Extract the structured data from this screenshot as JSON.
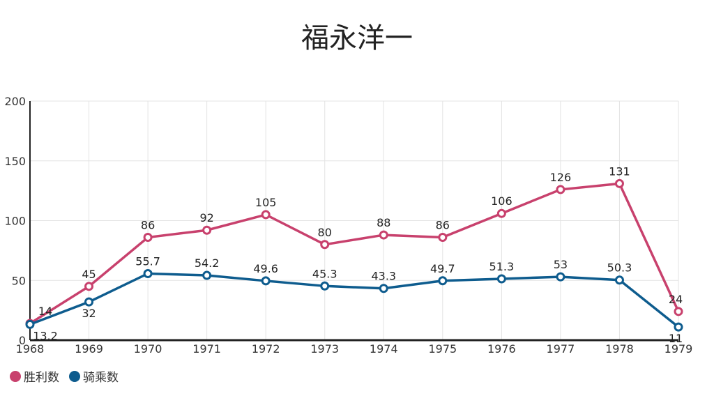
{
  "chart_data": {
    "type": "line",
    "title": "福永洋一",
    "x": [
      1968,
      1969,
      1970,
      1971,
      1972,
      1973,
      1974,
      1975,
      1976,
      1977,
      1978,
      1979
    ],
    "series": [
      {
        "name": "胜利数",
        "color": "#c8416d",
        "values": [
          14,
          45,
          86,
          92,
          105,
          80,
          88,
          86,
          106,
          126,
          131,
          24
        ]
      },
      {
        "name": "骑乘数",
        "color": "#0e5c8e",
        "values": [
          13.2,
          32,
          55.7,
          54.2,
          49.6,
          45.3,
          43.3,
          49.7,
          51.3,
          53,
          50.3,
          11
        ]
      }
    ],
    "ylim": [
      0,
      200
    ],
    "yticks": [
      0,
      50,
      100,
      150,
      200
    ],
    "grid": true,
    "legend": "bottom-left"
  }
}
